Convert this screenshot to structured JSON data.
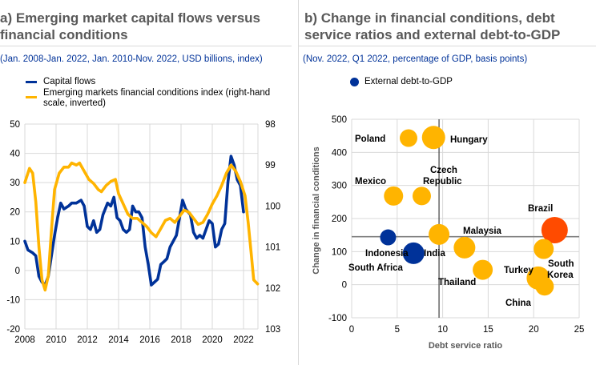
{
  "colors": {
    "blue": "#003299",
    "yellow": "#ffb400",
    "red": "#ff4b00",
    "grid": "#d9d9d9",
    "axis_text": "#000000",
    "title": "#595959"
  },
  "chart_data": [
    {
      "type": "line",
      "title": "a) Emerging market capital flows versus financial conditions",
      "subtitle": "(Jan. 2008-Jan. 2022, Jan. 2010-Nov. 2022, USD billions, index)",
      "xlim": [
        2008,
        2022.9
      ],
      "x_ticks": [
        "2008",
        "2010",
        "2012",
        "2014",
        "2016",
        "2018",
        "2020",
        "2022"
      ],
      "ylim": [
        -20,
        50
      ],
      "y_ticks": [
        "50",
        "40",
        "30",
        "20",
        "10",
        "0",
        "-10",
        "-20"
      ],
      "y2lim": [
        98,
        103
      ],
      "y2_inverted": true,
      "y2_ticks": [
        "98",
        "99",
        "100",
        "101",
        "102",
        "103"
      ],
      "grid": true,
      "legend_position": "top-left",
      "series": [
        {
          "name": "Capital flows",
          "axis": "left",
          "color": "#003299",
          "x": [
            2008.0,
            2008.2,
            2008.5,
            2008.7,
            2008.9,
            2009.1,
            2009.3,
            2009.5,
            2009.7,
            2009.9,
            2010.1,
            2010.3,
            2010.5,
            2010.8,
            2011.0,
            2011.3,
            2011.6,
            2011.8,
            2012.0,
            2012.2,
            2012.4,
            2012.6,
            2012.8,
            2013.0,
            2013.3,
            2013.5,
            2013.7,
            2013.9,
            2014.1,
            2014.3,
            2014.5,
            2014.7,
            2014.9,
            2015.1,
            2015.3,
            2015.5,
            2015.7,
            2015.9,
            2016.1,
            2016.3,
            2016.5,
            2016.7,
            2016.9,
            2017.1,
            2017.3,
            2017.5,
            2017.7,
            2017.9,
            2018.1,
            2018.3,
            2018.6,
            2018.8,
            2019.0,
            2019.2,
            2019.4,
            2019.6,
            2019.8,
            2020.0,
            2020.2,
            2020.4,
            2020.6,
            2020.8,
            2021.0,
            2021.2,
            2021.4,
            2021.6,
            2021.8,
            2022.0
          ],
          "values": [
            10,
            7,
            6,
            5,
            -2,
            -4,
            -5,
            -2,
            5,
            12,
            18,
            23,
            21,
            22,
            23,
            23,
            24,
            22,
            15,
            14,
            17,
            13,
            14,
            19,
            23,
            22,
            25,
            18,
            17,
            14,
            13,
            14,
            22,
            20,
            20,
            18,
            8,
            2,
            -5,
            -4,
            -3,
            2,
            3,
            4,
            8,
            10,
            12,
            18,
            24,
            21,
            19,
            13,
            11,
            12,
            11,
            14,
            17,
            16,
            8,
            9,
            14,
            16,
            30,
            39,
            36,
            31,
            29,
            20
          ]
        },
        {
          "name": "Emerging markets financial conditions index (right-hand scale, inverted)",
          "axis": "right",
          "color": "#ffb400",
          "x": [
            2008.0,
            2008.3,
            2008.5,
            2008.7,
            2008.9,
            2009.1,
            2009.3,
            2009.5,
            2009.7,
            2009.9,
            2010.2,
            2010.5,
            2010.8,
            2011.0,
            2011.3,
            2011.5,
            2011.8,
            2012.1,
            2012.4,
            2012.7,
            2012.9,
            2013.2,
            2013.5,
            2013.8,
            2014.0,
            2014.3,
            2014.6,
            2014.9,
            2015.2,
            2015.5,
            2015.8,
            2016.1,
            2016.4,
            2016.7,
            2017.0,
            2017.3,
            2017.6,
            2017.9,
            2018.2,
            2018.5,
            2018.8,
            2019.1,
            2019.4,
            2019.7,
            2020.0,
            2020.3,
            2020.6,
            2020.9,
            2021.2,
            2021.5,
            2021.8,
            2022.1,
            2022.3,
            2022.5,
            2022.65,
            2022.9
          ],
          "values": [
            99.43,
            99.08,
            99.2,
            99.9,
            101.0,
            101.8,
            102.05,
            101.7,
            100.6,
            99.6,
            99.2,
            99.05,
            99.05,
            98.95,
            99.0,
            98.95,
            99.15,
            99.35,
            99.45,
            99.6,
            99.65,
            99.5,
            99.4,
            99.35,
            99.7,
            99.95,
            100.2,
            100.3,
            100.3,
            100.4,
            100.5,
            100.65,
            100.75,
            100.55,
            100.35,
            100.3,
            100.4,
            100.25,
            100.1,
            100.15,
            100.3,
            100.45,
            100.4,
            100.2,
            99.95,
            99.75,
            99.5,
            99.2,
            99.0,
            99.15,
            99.4,
            99.75,
            100.4,
            101.2,
            101.8,
            101.9
          ]
        }
      ]
    },
    {
      "type": "scatter",
      "title": "b) Change in financial conditions, debt service ratios and external debt-to-GDP",
      "subtitle": "(Nov. 2022, Q1 2022, percentage of GDP, basis points)",
      "xlabel": "Debt service ratio",
      "ylabel": "Change in financial conditions",
      "xlim": [
        0,
        25
      ],
      "x_ticks": [
        "0",
        "5",
        "10",
        "15",
        "20",
        "25"
      ],
      "ylim": [
        -100,
        500
      ],
      "y_ticks": [
        "500",
        "400",
        "300",
        "200",
        "100",
        "0",
        "-100"
      ],
      "grid": true,
      "reference_lines": {
        "x": 9.6,
        "y": 145
      },
      "legend": [
        "External debt-to-GDP"
      ],
      "legend_position": "top-left",
      "points": [
        {
          "label": "Poland",
          "x": 6.25,
          "y": 443,
          "size": 22,
          "color": "#ffb400"
        },
        {
          "label": "Hungary",
          "x": 9.0,
          "y": 445,
          "size": 29,
          "color": "#ffb400"
        },
        {
          "label": "Mexico",
          "x": 4.6,
          "y": 268,
          "size": 24,
          "color": "#ffb400"
        },
        {
          "label": "Czech Republic",
          "x": 7.7,
          "y": 268,
          "size": 23,
          "color": "#ffb400"
        },
        {
          "label": "Indonesia",
          "x": 4.0,
          "y": 143,
          "size": 20,
          "color": "#003299"
        },
        {
          "label": "South Africa",
          "x": 6.8,
          "y": 95,
          "size": 27,
          "color": "#003299"
        },
        {
          "label": "India",
          "x": 9.6,
          "y": 152,
          "size": 26,
          "color": "#ffb400"
        },
        {
          "label": "Malaysia",
          "x": 12.4,
          "y": 112,
          "size": 27,
          "color": "#ffb400"
        },
        {
          "label": "Thailand",
          "x": 14.4,
          "y": 45,
          "size": 25,
          "color": "#ffb400"
        },
        {
          "label": "Brazil",
          "x": 22.3,
          "y": 165,
          "size": 33,
          "color": "#ff4b00"
        },
        {
          "label": "South Korea",
          "x": 21.1,
          "y": 108,
          "size": 25,
          "color": "#ffb400"
        },
        {
          "label": "Turkey",
          "x": 20.5,
          "y": 20,
          "size": 29,
          "color": "#ffb400"
        },
        {
          "label": "China",
          "x": 21.2,
          "y": -5,
          "size": 23,
          "color": "#ffb400"
        }
      ]
    }
  ]
}
